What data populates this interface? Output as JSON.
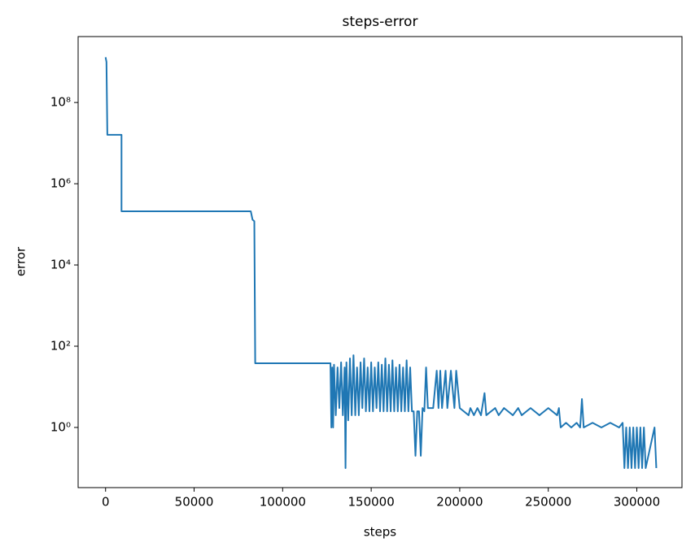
{
  "chart_data": {
    "type": "line",
    "title": "steps-error",
    "xlabel": "steps",
    "ylabel": "error",
    "yscale": "log",
    "xlim": [
      -15500,
      325500
    ],
    "xticks": [
      0,
      50000,
      100000,
      150000,
      200000,
      250000,
      300000
    ],
    "ylim": [
      0.033,
      4200000000
    ],
    "yticks": [
      {
        "value": 1,
        "label": "10⁰"
      },
      {
        "value": 100,
        "label": "10²"
      },
      {
        "value": 10000,
        "label": "10⁴"
      },
      {
        "value": 1000000,
        "label": "10⁶"
      },
      {
        "value": 100000000,
        "label": "10⁸"
      }
    ],
    "series": [
      {
        "color": "#1f77b4",
        "x": [
          0,
          500,
          1000,
          9000,
          9000,
          82000,
          83000,
          84000,
          84500,
          127000,
          127000,
          127500,
          128000,
          128500,
          129000,
          130000,
          131000,
          132000,
          133000,
          134000,
          135000,
          135500,
          136000,
          137000,
          138000,
          139000,
          140000,
          141000,
          142000,
          143000,
          144000,
          145000,
          146000,
          147000,
          148000,
          149000,
          150000,
          151000,
          152000,
          153000,
          154000,
          155000,
          156000,
          157000,
          158000,
          159000,
          160000,
          161000,
          162000,
          163000,
          164000,
          165000,
          166000,
          167000,
          168000,
          169000,
          170000,
          171000,
          172000,
          173000,
          174000,
          175000,
          176000,
          177000,
          178000,
          179000,
          180000,
          181000,
          182000,
          185000,
          187000,
          188000,
          189000,
          190000,
          192000,
          193000,
          195000,
          197000,
          198000,
          200000,
          205000,
          206000,
          208000,
          210000,
          212000,
          214000,
          215000,
          220000,
          222000,
          225000,
          230000,
          233000,
          235000,
          240000,
          245000,
          250000,
          255000,
          256000,
          257000,
          260000,
          263000,
          266000,
          268000,
          269000,
          270000,
          275000,
          280000,
          285000,
          290000,
          292000,
          293000,
          294000,
          295000,
          296000,
          297000,
          298000,
          299000,
          300000,
          301000,
          302000,
          303000,
          304000,
          305000,
          310000,
          311000
        ],
        "values": [
          1300000000,
          1000000000,
          16000000,
          16000000,
          210000,
          210000,
          130000,
          120000,
          38,
          38,
          38,
          1,
          30,
          1,
          35,
          2,
          30,
          3,
          40,
          2,
          30,
          0.1,
          40,
          1.5,
          50,
          2,
          60,
          2,
          30,
          2,
          40,
          3,
          50,
          2.5,
          30,
          2.5,
          40,
          2.5,
          30,
          3,
          40,
          2.5,
          35,
          2.5,
          50,
          2.5,
          35,
          2.5,
          45,
          2.5,
          30,
          2.5,
          35,
          2.5,
          30,
          2.5,
          45,
          2.5,
          30,
          2.5,
          2.5,
          0.2,
          2.5,
          2.5,
          0.2,
          3,
          2.5,
          30,
          3,
          3,
          25,
          3,
          25,
          3,
          25,
          3,
          25,
          3,
          25,
          3,
          2,
          3,
          2,
          3,
          2,
          7,
          2,
          3,
          2,
          3,
          2,
          3,
          2,
          3,
          2,
          3,
          2,
          3,
          1,
          1.3,
          1,
          1.3,
          1,
          5,
          1,
          1.3,
          1,
          1.3,
          1,
          1.3,
          0.1,
          1,
          0.1,
          1,
          0.1,
          1,
          0.1,
          1,
          0.1,
          1,
          0.1,
          1,
          0.1,
          1,
          0.1
        ]
      }
    ]
  }
}
